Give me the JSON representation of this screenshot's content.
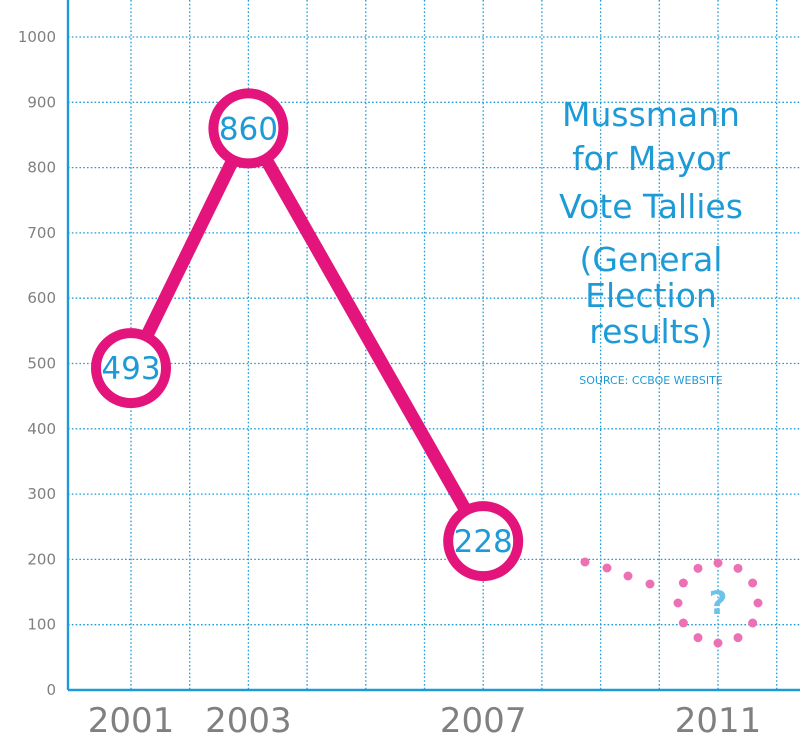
{
  "chart_data": {
    "type": "line",
    "title_lines": [
      "Mussmann",
      "for Mayor",
      "Vote Tallies",
      "(General",
      "Election",
      "results)"
    ],
    "source": "SOURCE: CCBOE WEBSITE",
    "categories": [
      "2001",
      "2003",
      "2007",
      "2011"
    ],
    "series": [
      {
        "values": [
          493,
          860,
          228,
          null
        ]
      }
    ],
    "point_labels": [
      "493",
      "860",
      "228"
    ],
    "unknown_label": "?",
    "ylim": [
      0,
      1000
    ],
    "yticks": [
      "0",
      "100",
      "200",
      "300",
      "400",
      "500",
      "600",
      "700",
      "800",
      "900",
      "1000"
    ],
    "grid": true,
    "colors": {
      "line": "#e3157c",
      "grid": "#1e9bd7",
      "label": "#1e9bd7",
      "dots": "#ec70b4",
      "question": "#6cc3ea"
    }
  }
}
